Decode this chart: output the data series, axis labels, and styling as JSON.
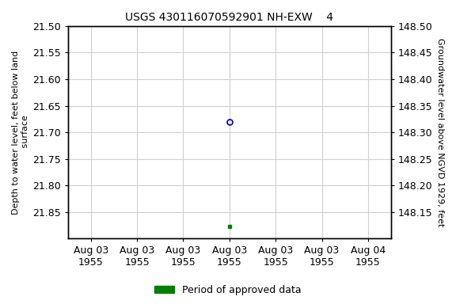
{
  "title": "USGS 430116070592901 NH-EXW    4",
  "title_fontsize": 10,
  "ylabel_left": "Depth to water level, feet below land\n surface",
  "ylabel_right": "Groundwater level above NGVD 1929, feet",
  "ylim_left_top": 21.5,
  "ylim_left_bottom": 21.9,
  "ylim_right_top": 148.5,
  "ylim_right_bottom": 148.1,
  "yticks_left": [
    21.5,
    21.55,
    21.6,
    21.65,
    21.7,
    21.75,
    21.8,
    21.85
  ],
  "yticks_right": [
    148.5,
    148.45,
    148.4,
    148.35,
    148.3,
    148.25,
    148.2,
    148.15
  ],
  "circle_point_x": 3,
  "circle_point_y": 21.68,
  "green_point_x": 3,
  "green_point_y": 21.877,
  "xtick_positions": [
    0,
    1,
    2,
    3,
    4,
    5,
    6
  ],
  "xtick_labels": [
    "Aug 03\n1955",
    "Aug 03\n1955",
    "Aug 03\n1955",
    "Aug 03\n1955",
    "Aug 03\n1955",
    "Aug 03\n1955",
    "Aug 04\n1955"
  ],
  "xlim": [
    -0.5,
    6.5
  ],
  "background_color": "#ffffff",
  "grid_color": "#d0d0d0",
  "circle_color": "#0000bb",
  "green_color": "#008000",
  "legend_label": "Period of approved data",
  "font_family": "Courier New",
  "tick_fontsize": 9,
  "label_fontsize": 8
}
